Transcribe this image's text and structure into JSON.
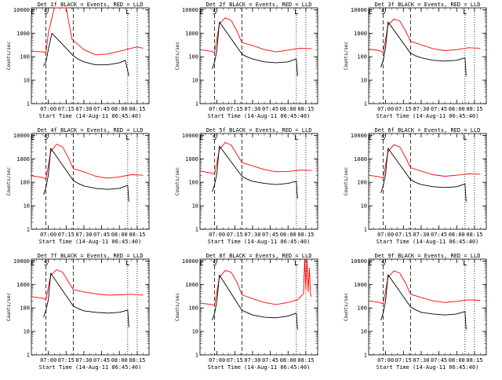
{
  "chart_data": [
    {
      "type": "line",
      "title": "Det 1f BLACK = Events, RED = LLD",
      "xlabel": "Start Time (14-Aug-11 06:45:40)",
      "ylabel": "Counts/sec",
      "y_scale": "log",
      "ylim": [
        1,
        12000
      ],
      "yticks": [
        "1",
        "10",
        "100",
        "1000",
        "10000"
      ],
      "xticks": [
        "07:00",
        "07:15",
        "07:30",
        "07:45",
        "08:00",
        "08:15"
      ],
      "markers": {
        "E": "06:47",
        "S": "06:58",
        "L": "08:07"
      },
      "dashed_lines": [
        "06:58",
        "07:21"
      ],
      "dotted_lines": [
        "08:07",
        "08:15"
      ],
      "series": [
        {
          "name": "LLD",
          "color": "#ff0000",
          "x": [
            "06:46",
            "06:55",
            "06:58",
            "07:00",
            "07:05",
            "07:10",
            "07:15",
            "07:20",
            "07:25",
            "07:30",
            "07:40",
            "07:50",
            "08:00",
            "08:10",
            "08:15",
            "08:20"
          ],
          "y": [
            170,
            160,
            150,
            1000,
            12000,
            12000,
            12000,
            550,
            330,
            200,
            120,
            130,
            170,
            230,
            260,
            230
          ]
        },
        {
          "name": "Events",
          "color": "#000000",
          "x": [
            "06:56",
            "06:58",
            "07:00",
            "07:03",
            "07:21",
            "07:25",
            "07:30",
            "07:40",
            "07:50",
            "08:00",
            "08:05",
            "08:08"
          ],
          "y": [
            40,
            60,
            200,
            1000,
            110,
            80,
            60,
            45,
            45,
            55,
            70,
            15
          ]
        }
      ]
    },
    {
      "type": "line",
      "title": "Det 2f BLACK = Events, RED = LLD",
      "xlabel": "Start Time (14-Aug-11 06:45:40)",
      "ylabel": "Counts/sec",
      "y_scale": "log",
      "ylim": [
        1,
        12000
      ],
      "yticks": [
        "1",
        "10",
        "100",
        "1000",
        "10000"
      ],
      "xticks": [
        "07:00",
        "07:15",
        "07:30",
        "07:45",
        "08:00",
        "08:15"
      ],
      "markers": {
        "E": "06:47",
        "S": "06:58",
        "L": "08:07"
      },
      "dashed_lines": [
        "06:58",
        "07:21"
      ],
      "dotted_lines": [
        "08:07",
        "08:15"
      ],
      "series": [
        {
          "name": "LLD",
          "color": "#ff0000",
          "x": [
            "06:46",
            "06:55",
            "06:58",
            "07:02",
            "07:07",
            "07:12",
            "07:17",
            "07:21",
            "07:30",
            "07:40",
            "07:50",
            "08:00",
            "08:10",
            "08:20"
          ],
          "y": [
            200,
            170,
            150,
            2500,
            4500,
            3500,
            1200,
            400,
            300,
            200,
            160,
            190,
            230,
            220
          ]
        },
        {
          "name": "Events",
          "color": "#000000",
          "x": [
            "06:56",
            "06:58",
            "07:00",
            "07:02",
            "07:21",
            "07:25",
            "07:30",
            "07:40",
            "07:50",
            "08:00",
            "08:07",
            "08:08"
          ],
          "y": [
            30,
            60,
            200,
            3000,
            130,
            100,
            80,
            60,
            55,
            60,
            80,
            15
          ]
        }
      ]
    },
    {
      "type": "line",
      "title": "Det 3f BLACK = Events, RED = LLD",
      "xlabel": "Start Time (14-Aug-11 06:45:40)",
      "ylabel": "Counts/sec",
      "y_scale": "log",
      "ylim": [
        1,
        12000
      ],
      "yticks": [
        "1",
        "10",
        "100",
        "1000",
        "10000"
      ],
      "xticks": [
        "07:00",
        "07:15",
        "07:30",
        "07:45",
        "08:00",
        "08:15"
      ],
      "markers": {
        "E": "06:47",
        "S": "06:58",
        "L": "08:07"
      },
      "dashed_lines": [
        "06:58",
        "07:21"
      ],
      "dotted_lines": [
        "08:07",
        "08:15"
      ],
      "series": [
        {
          "name": "LLD",
          "color": "#ff0000",
          "x": [
            "06:46",
            "06:55",
            "06:58",
            "07:02",
            "07:07",
            "07:12",
            "07:17",
            "07:21",
            "07:30",
            "07:40",
            "07:50",
            "08:00",
            "08:10",
            "08:20"
          ],
          "y": [
            210,
            180,
            150,
            2200,
            4000,
            3300,
            1200,
            450,
            320,
            220,
            180,
            200,
            240,
            230
          ]
        },
        {
          "name": "Events",
          "color": "#000000",
          "x": [
            "06:56",
            "06:58",
            "07:00",
            "07:02",
            "07:21",
            "07:25",
            "07:30",
            "07:40",
            "07:50",
            "08:00",
            "08:07",
            "08:08"
          ],
          "y": [
            35,
            70,
            250,
            3000,
            140,
            110,
            90,
            70,
            65,
            70,
            90,
            15
          ]
        }
      ]
    },
    {
      "type": "line",
      "title": "Det 4f BLACK = Events, RED = LLD",
      "xlabel": "Start Time (14-Aug-11 06:45:40)",
      "ylabel": "Counts/sec",
      "y_scale": "log",
      "ylim": [
        1,
        12000
      ],
      "yticks": [
        "1",
        "10",
        "100",
        "1000",
        "10000"
      ],
      "xticks": [
        "07:00",
        "07:15",
        "07:30",
        "07:45",
        "08:00",
        "08:15"
      ],
      "markers": {
        "E": "06:47",
        "S": "06:58",
        "L": "08:07"
      },
      "dashed_lines": [
        "06:58",
        "07:21"
      ],
      "dotted_lines": [
        "08:07",
        "08:15"
      ],
      "series": [
        {
          "name": "LLD",
          "color": "#ff0000",
          "x": [
            "06:46",
            "06:55",
            "06:58",
            "07:02",
            "07:07",
            "07:12",
            "07:17",
            "07:21",
            "07:30",
            "07:40",
            "07:50",
            "08:00",
            "08:10",
            "08:20"
          ],
          "y": [
            190,
            160,
            140,
            2000,
            4200,
            3200,
            1100,
            380,
            280,
            180,
            150,
            170,
            210,
            200
          ]
        },
        {
          "name": "Events",
          "color": "#000000",
          "x": [
            "06:56",
            "06:58",
            "07:00",
            "07:02",
            "07:21",
            "07:25",
            "07:30",
            "07:40",
            "07:50",
            "08:00",
            "08:07",
            "08:08"
          ],
          "y": [
            30,
            60,
            200,
            2800,
            120,
            90,
            70,
            55,
            50,
            55,
            75,
            15
          ]
        }
      ]
    },
    {
      "type": "line",
      "title": "Det 5f BLACK = Events, RED = LLD",
      "xlabel": "Start Time (14-Aug-11 06:45:40)",
      "ylabel": "Counts/sec",
      "y_scale": "log",
      "ylim": [
        1,
        12000
      ],
      "yticks": [
        "1",
        "10",
        "100",
        "1000",
        "10000"
      ],
      "xticks": [
        "07:00",
        "07:15",
        "07:30",
        "07:45",
        "08:00",
        "08:15"
      ],
      "markers": {
        "E": "06:47",
        "S": "06:58",
        "L": "08:07"
      },
      "dashed_lines": [
        "06:58",
        "07:21"
      ],
      "dotted_lines": [
        "08:07",
        "08:15"
      ],
      "series": [
        {
          "name": "LLD",
          "color": "#ff0000",
          "x": [
            "06:46",
            "06:55",
            "06:58",
            "07:02",
            "07:07",
            "07:12",
            "07:17",
            "07:21",
            "07:30",
            "07:40",
            "07:50",
            "08:00",
            "08:10",
            "08:20"
          ],
          "y": [
            300,
            250,
            220,
            2500,
            5000,
            3800,
            1500,
            700,
            500,
            350,
            280,
            290,
            330,
            320
          ]
        },
        {
          "name": "Events",
          "color": "#000000",
          "x": [
            "06:56",
            "06:58",
            "07:00",
            "07:02",
            "07:21",
            "07:25",
            "07:30",
            "07:40",
            "07:50",
            "08:00",
            "08:07",
            "08:08"
          ],
          "y": [
            40,
            80,
            250,
            3500,
            180,
            140,
            110,
            90,
            80,
            90,
            110,
            20
          ]
        }
      ]
    },
    {
      "type": "line",
      "title": "Det 6f BLACK = Events, RED = LLD",
      "xlabel": "Start Time (14-Aug-11 06:45:40)",
      "ylabel": "Counts/sec",
      "y_scale": "log",
      "ylim": [
        1,
        12000
      ],
      "yticks": [
        "1",
        "10",
        "100",
        "1000",
        "10000"
      ],
      "xticks": [
        "07:00",
        "07:15",
        "07:30",
        "07:45",
        "08:00",
        "08:15"
      ],
      "markers": {
        "E": "06:47",
        "S": "06:58",
        "L": "08:07"
      },
      "dashed_lines": [
        "06:58",
        "07:21"
      ],
      "dotted_lines": [
        "08:07",
        "08:15"
      ],
      "series": [
        {
          "name": "LLD",
          "color": "#ff0000",
          "x": [
            "06:46",
            "06:55",
            "06:58",
            "07:02",
            "07:07",
            "07:12",
            "07:17",
            "07:21",
            "07:30",
            "07:40",
            "07:50",
            "08:00",
            "08:10",
            "08:20"
          ],
          "y": [
            200,
            170,
            150,
            2000,
            4000,
            3200,
            1100,
            420,
            300,
            210,
            180,
            200,
            230,
            220
          ]
        },
        {
          "name": "Events",
          "color": "#000000",
          "x": [
            "06:56",
            "06:58",
            "07:00",
            "07:02",
            "07:21",
            "07:25",
            "07:30",
            "07:40",
            "07:50",
            "08:00",
            "08:07",
            "08:08"
          ],
          "y": [
            35,
            70,
            220,
            2800,
            130,
            100,
            80,
            65,
            60,
            65,
            85,
            15
          ]
        }
      ]
    },
    {
      "type": "line",
      "title": "Det 7f BLACK = Events, RED = LLD",
      "xlabel": "Start Time (14-Aug-11 06:45:40)",
      "ylabel": "Counts/sec",
      "y_scale": "log",
      "ylim": [
        1,
        12000
      ],
      "yticks": [
        "1",
        "10",
        "100",
        "1000",
        "10000"
      ],
      "xticks": [
        "07:00",
        "07:15",
        "07:30",
        "07:45",
        "08:00",
        "08:15"
      ],
      "markers": {
        "E": "06:47",
        "S": "06:58",
        "L": "08:07"
      },
      "dashed_lines": [
        "06:58",
        "07:21"
      ],
      "dotted_lines": [
        "08:07",
        "08:15"
      ],
      "series": [
        {
          "name": "LLD",
          "color": "#ff0000",
          "x": [
            "06:46",
            "06:55",
            "06:58",
            "07:02",
            "07:07",
            "07:12",
            "07:17",
            "07:21",
            "07:30",
            "07:40",
            "07:50",
            "08:00",
            "08:10",
            "08:20"
          ],
          "y": [
            300,
            260,
            230,
            2500,
            4200,
            3300,
            1300,
            600,
            480,
            400,
            350,
            360,
            380,
            350
          ]
        },
        {
          "name": "Events",
          "color": "#000000",
          "x": [
            "06:56",
            "06:58",
            "07:00",
            "07:02",
            "07:21",
            "07:25",
            "07:30",
            "07:40",
            "07:50",
            "08:00",
            "08:07",
            "08:08"
          ],
          "y": [
            40,
            80,
            220,
            3000,
            120,
            95,
            75,
            65,
            60,
            65,
            80,
            15
          ]
        }
      ]
    },
    {
      "type": "line",
      "title": "Det 8f BLACK = Events, RED = LLD",
      "xlabel": "Start Time (14-Aug-11 06:45:40)",
      "ylabel": "Counts/sec",
      "y_scale": "log",
      "ylim": [
        1,
        12000
      ],
      "yticks": [
        "1",
        "10",
        "100",
        "1000",
        "10000"
      ],
      "xticks": [
        "07:00",
        "07:15",
        "07:30",
        "07:45",
        "08:00",
        "08:15"
      ],
      "markers": {
        "E": "06:47",
        "S": "06:58",
        "L": "08:07"
      },
      "dashed_lines": [
        "06:58",
        "07:21"
      ],
      "dotted_lines": [
        "08:07",
        "08:15"
      ],
      "series": [
        {
          "name": "LLD",
          "color": "#ff0000",
          "x": [
            "06:46",
            "06:55",
            "06:58",
            "07:02",
            "07:07",
            "07:12",
            "07:17",
            "07:21",
            "07:30",
            "07:40",
            "07:50",
            "08:00",
            "08:08",
            "08:13",
            "08:14",
            "08:15",
            "08:16",
            "08:17",
            "08:18",
            "08:19",
            "08:20"
          ],
          "y": [
            160,
            140,
            130,
            2000,
            4000,
            3300,
            1200,
            360,
            250,
            170,
            140,
            170,
            220,
            400,
            12000,
            600,
            12000,
            500,
            5000,
            350,
            300
          ]
        },
        {
          "name": "Events",
          "color": "#000000",
          "x": [
            "06:56",
            "06:58",
            "07:00",
            "07:02",
            "07:21",
            "07:25",
            "07:30",
            "07:40",
            "07:50",
            "08:00",
            "08:07",
            "08:08"
          ],
          "y": [
            30,
            60,
            200,
            2500,
            80,
            65,
            50,
            40,
            38,
            45,
            60,
            12
          ]
        }
      ]
    },
    {
      "type": "line",
      "title": "Det 9f BLACK = Events, RED = LLD",
      "xlabel": "Start Time (14-Aug-11 06:45:40)",
      "ylabel": "Counts/sec",
      "y_scale": "log",
      "ylim": [
        1,
        12000
      ],
      "yticks": [
        "1",
        "10",
        "100",
        "1000",
        "10000"
      ],
      "xticks": [
        "07:00",
        "07:15",
        "07:30",
        "07:45",
        "08:00",
        "08:15"
      ],
      "markers": {
        "E": "06:47",
        "S": "06:58",
        "L": "08:07"
      },
      "dashed_lines": [
        "06:58",
        "07:21"
      ],
      "dotted_lines": [
        "08:07",
        "08:15"
      ],
      "series": [
        {
          "name": "LLD",
          "color": "#ff0000",
          "x": [
            "06:46",
            "06:55",
            "06:58",
            "07:02",
            "07:07",
            "07:12",
            "07:17",
            "07:21",
            "07:30",
            "07:40",
            "07:50",
            "08:00",
            "08:10",
            "08:20"
          ],
          "y": [
            200,
            170,
            150,
            2000,
            3800,
            3000,
            1100,
            380,
            280,
            200,
            170,
            190,
            220,
            210
          ]
        },
        {
          "name": "Events",
          "color": "#000000",
          "x": [
            "06:56",
            "06:58",
            "07:00",
            "07:02",
            "07:21",
            "07:25",
            "07:30",
            "07:40",
            "07:50",
            "08:00",
            "08:07",
            "08:08"
          ],
          "y": [
            30,
            60,
            200,
            2600,
            110,
            85,
            65,
            55,
            50,
            55,
            70,
            12
          ]
        }
      ]
    }
  ]
}
